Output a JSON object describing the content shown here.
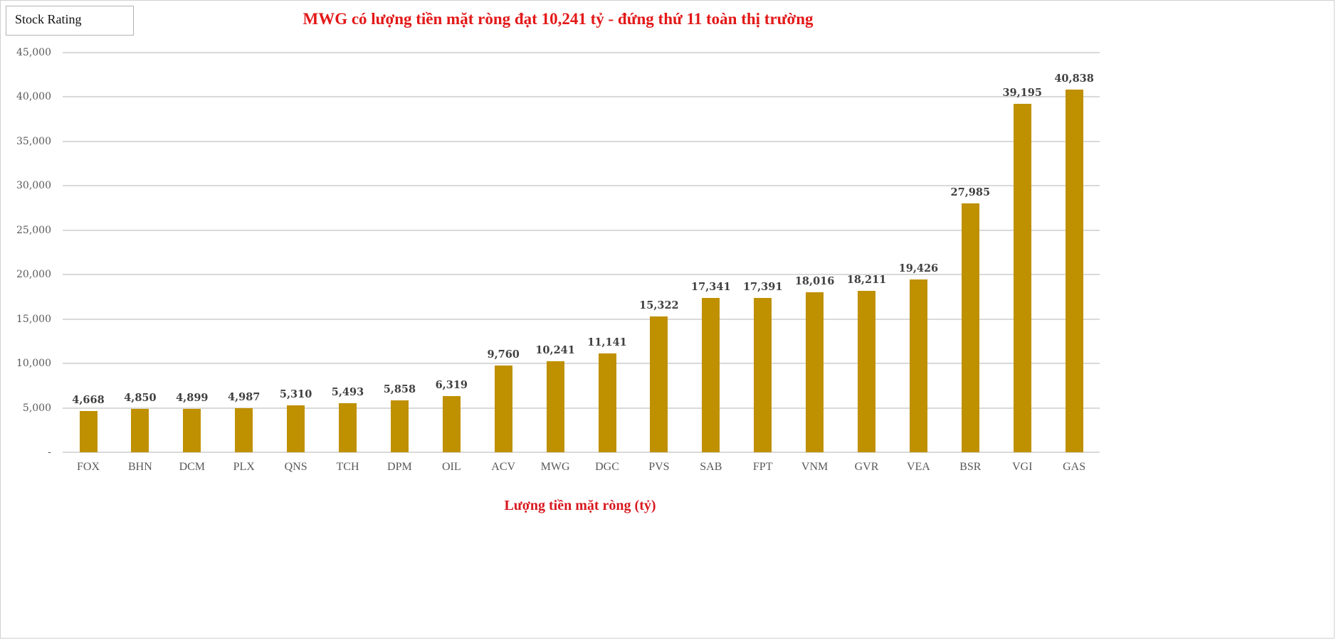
{
  "badge": {
    "label": "Stock Rating"
  },
  "chart_data": {
    "type": "bar",
    "title": "MWG có lượng tiền mặt ròng đạt 10,241 tỷ - đứng thứ 11 toàn thị trường",
    "xlabel": "Lượng tiền mặt ròng (tỷ)",
    "ylabel": "",
    "ylim": [
      0,
      45000
    ],
    "yticks": [
      0,
      5000,
      10000,
      15000,
      20000,
      25000,
      30000,
      35000,
      40000,
      45000
    ],
    "ytick_labels": [
      "-",
      "5,000",
      "10,000",
      "15,000",
      "20,000",
      "25,000",
      "30,000",
      "35,000",
      "40,000",
      "45,000"
    ],
    "grid": true,
    "legend": null,
    "bar_color": "#bf9000",
    "title_color": "#e31818",
    "categories": [
      "FOX",
      "BHN",
      "DCM",
      "PLX",
      "QNS",
      "TCH",
      "DPM",
      "OIL",
      "ACV",
      "MWG",
      "DGC",
      "PVS",
      "SAB",
      "FPT",
      "VNM",
      "GVR",
      "VEA",
      "BSR",
      "VGI",
      "GAS"
    ],
    "values": [
      4668,
      4850,
      4899,
      4987,
      5310,
      5493,
      5858,
      6319,
      9760,
      10241,
      11141,
      15322,
      17341,
      17391,
      18016,
      18211,
      19426,
      27985,
      39195,
      40838
    ],
    "value_labels": [
      "4,668",
      "4,850",
      "4,899",
      "4,987",
      "5,310",
      "5,493",
      "5,858",
      "6,319",
      "9,760",
      "10,241",
      "11,141",
      "15,322",
      "17,341",
      "17,391",
      "18,016",
      "18,211",
      "19,426",
      "27,985",
      "39,195",
      "40,838"
    ]
  }
}
